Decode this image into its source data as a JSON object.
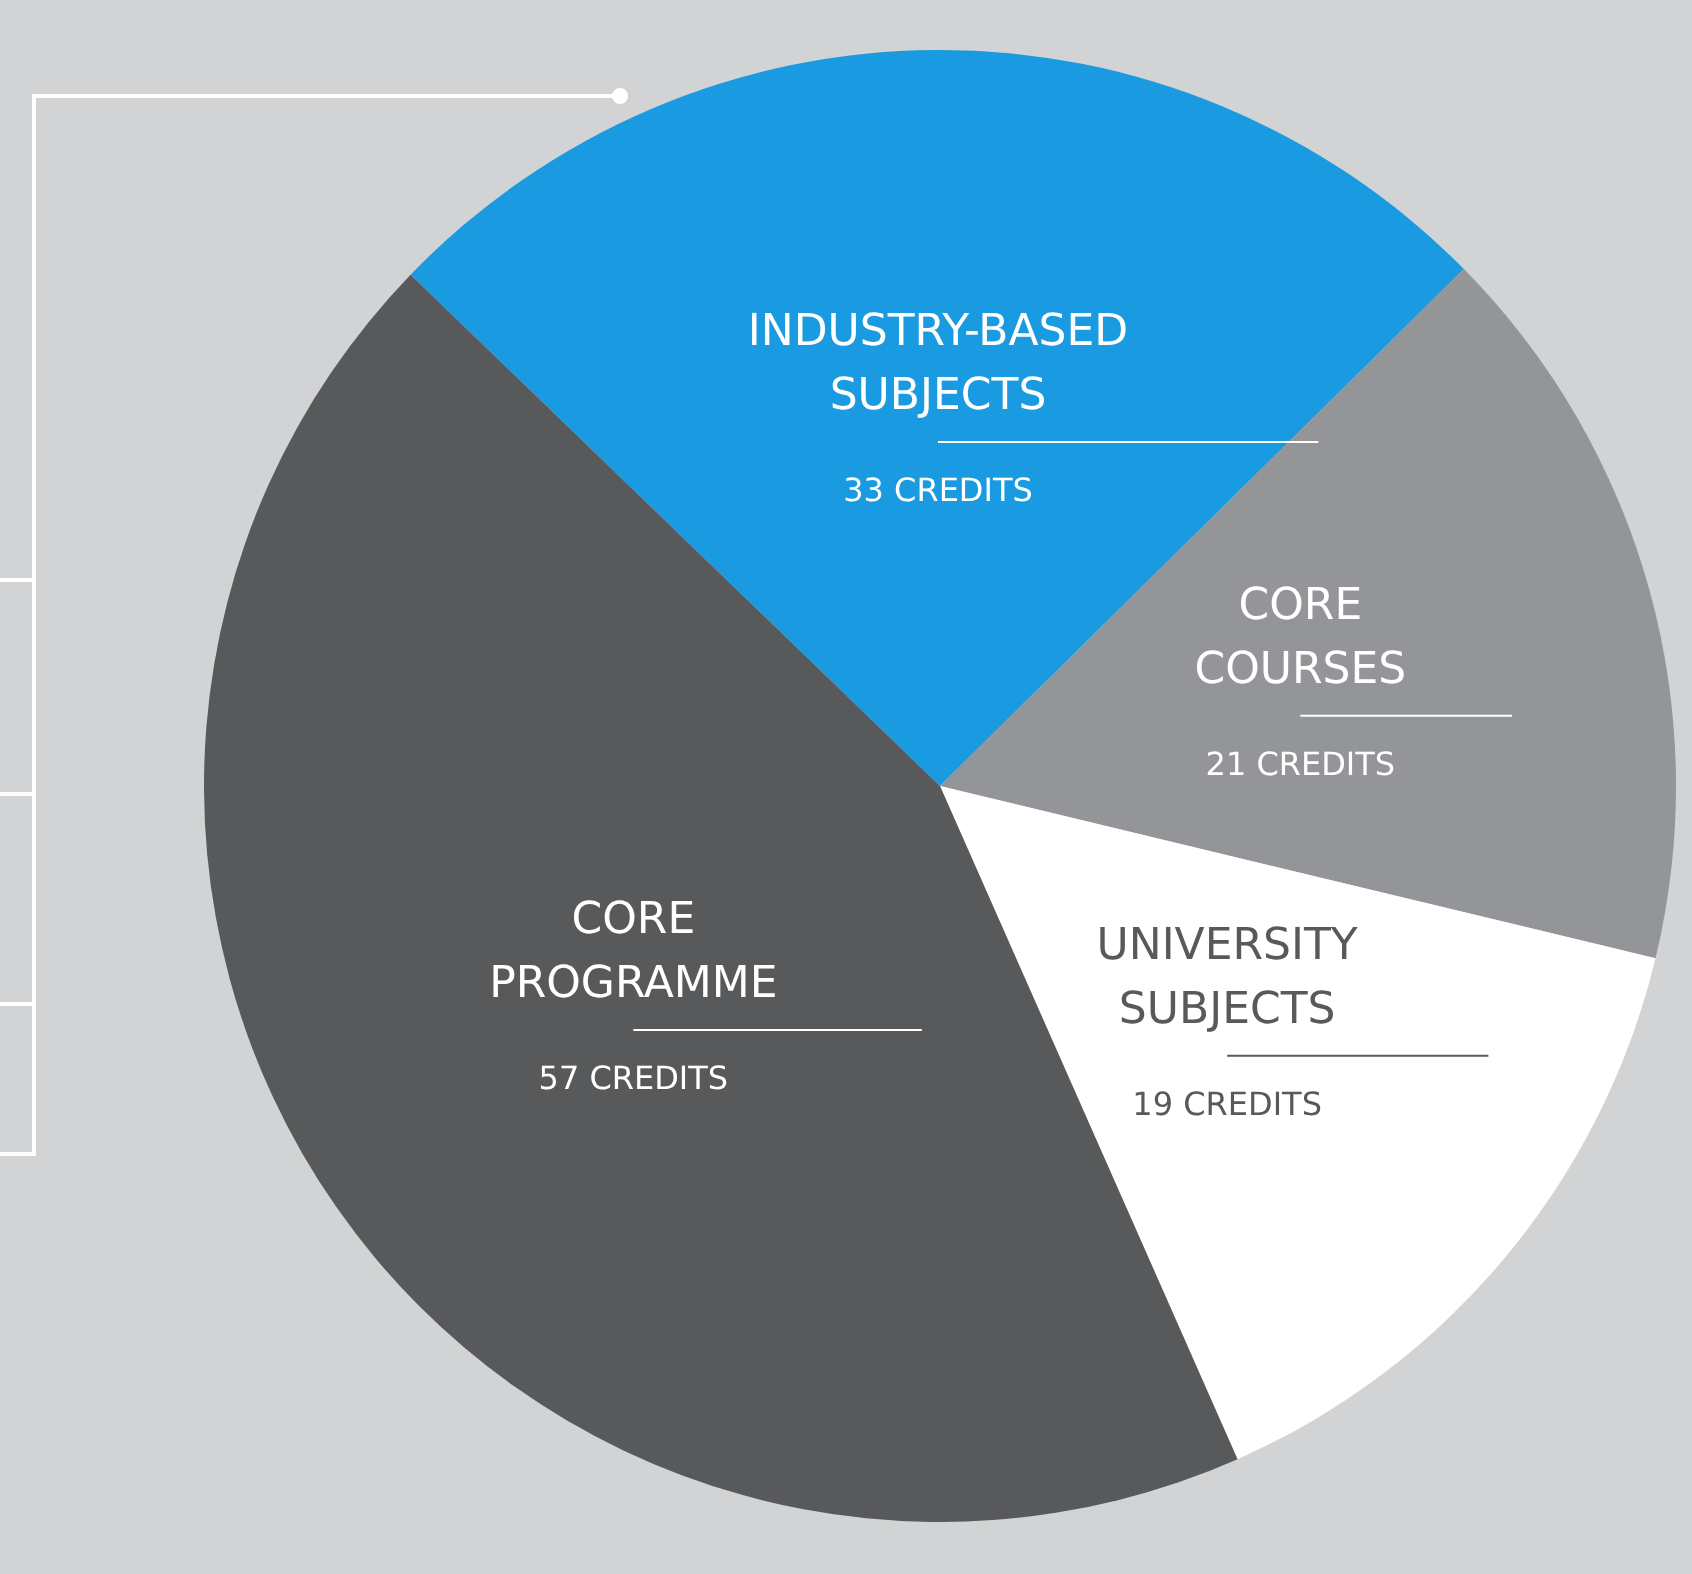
{
  "chart_data": {
    "type": "pie",
    "categories": [
      "INDUSTRY-BASED SUBJECTS",
      "CORE COURSES",
      "UNIVERSITY SUBJECTS",
      "CORE PROGRAMME"
    ],
    "values": [
      33,
      21,
      19,
      57
    ],
    "colors": [
      "#1a9ae0",
      "#939598",
      "#ffffff",
      "#58595b"
    ],
    "value_labels": [
      "33 CREDITS",
      "21 CREDITS",
      "19 CREDITS",
      "57 CREDITS"
    ],
    "legend": false
  }
}
